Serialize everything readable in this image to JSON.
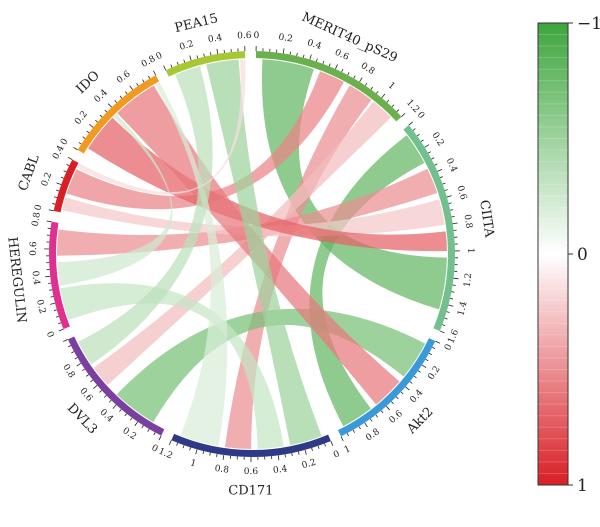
{
  "chart_data": {
    "type": "chord",
    "title": "",
    "sectors": [
      {
        "name": "MERIT40_pS29",
        "max": 1.2,
        "ticks": [
          0,
          0.2,
          0.4,
          0.6,
          0.8,
          1,
          1.2
        ],
        "color": "#6ab04c"
      },
      {
        "name": "CIITA",
        "max": 1.6,
        "ticks": [
          0,
          0.2,
          0.4,
          0.6,
          0.8,
          1,
          1.2,
          1.4,
          1.6
        ],
        "color": "#72c08e"
      },
      {
        "name": "Akt2",
        "max": 1.0,
        "ticks": [
          0,
          0.2,
          0.4,
          0.6,
          0.8,
          1
        ],
        "color": "#3a9ad8"
      },
      {
        "name": "CD171",
        "max": 1.2,
        "ticks": [
          0,
          0.2,
          0.4,
          0.6,
          0.8,
          1,
          1.2
        ],
        "color": "#2e3a87"
      },
      {
        "name": "DVL3",
        "max": 1.0,
        "ticks": [
          0,
          0.2,
          0.4,
          0.6,
          0.8
        ],
        "color": "#7b3fa0"
      },
      {
        "name": "HEREGULIN",
        "max": 0.8,
        "ticks": [
          0,
          0.2,
          0.4,
          0.6,
          0.8
        ],
        "color": "#e0308f"
      },
      {
        "name": "CABL",
        "max": 0.4,
        "ticks": [
          0,
          0.2,
          0.4
        ],
        "color": "#d81f26"
      },
      {
        "name": "IDO",
        "max": 0.8,
        "ticks": [
          0,
          0.2,
          0.4,
          0.6,
          0.8
        ],
        "color": "#f29a1f"
      },
      {
        "name": "PEA15",
        "max": 0.6,
        "ticks": [
          0,
          0.2,
          0.4,
          0.6
        ],
        "color": "#a8c833"
      }
    ],
    "links": [
      {
        "from": "MERIT40_pS29",
        "from_range": [
          0.05,
          0.45
        ],
        "to": "CIITA",
        "to_range": [
          1.05,
          1.45
        ],
        "value": -0.8
      },
      {
        "from": "MERIT40_pS29",
        "from_range": [
          0.5,
          0.7
        ],
        "to": "CABL",
        "to_range": [
          0.15,
          0.35
        ],
        "value": 0.55
      },
      {
        "from": "MERIT40_pS29",
        "from_range": [
          0.75,
          0.95
        ],
        "to": "CD171",
        "to_range": [
          0.6,
          0.8
        ],
        "value": 0.5
      },
      {
        "from": "MERIT40_pS29",
        "from_range": [
          0.97,
          1.15
        ],
        "to": "DVL3",
        "to_range": [
          0.55,
          0.72
        ],
        "value": 0.3
      },
      {
        "from": "CIITA",
        "from_range": [
          0.05,
          0.3
        ],
        "to": "Akt2",
        "to_range": [
          0.7,
          0.95
        ],
        "value": -0.8
      },
      {
        "from": "CIITA",
        "from_range": [
          0.35,
          0.55
        ],
        "to": "HEREGULIN",
        "to_range": [
          0.55,
          0.75
        ],
        "value": 0.5
      },
      {
        "from": "CIITA",
        "from_range": [
          0.6,
          0.8
        ],
        "to": "CABL",
        "to_range": [
          0.02,
          0.12
        ],
        "value": 0.25
      },
      {
        "from": "CIITA",
        "from_range": [
          0.85,
          1.0
        ],
        "to": "IDO",
        "to_range": [
          0.05,
          0.35
        ],
        "value": 0.7
      },
      {
        "from": "Akt2",
        "from_range": [
          0.05,
          0.35
        ],
        "to": "DVL3",
        "to_range": [
          0.1,
          0.45
        ],
        "value": -0.7
      },
      {
        "from": "Akt2",
        "from_range": [
          0.4,
          0.65
        ],
        "to": "IDO",
        "to_range": [
          0.4,
          0.75
        ],
        "value": 0.6
      },
      {
        "from": "CD171",
        "from_range": [
          0.05,
          0.3
        ],
        "to": "PEA15",
        "to_range": [
          0.3,
          0.55
        ],
        "value": -0.5
      },
      {
        "from": "CD171",
        "from_range": [
          0.35,
          0.55
        ],
        "to": "HEREGULIN",
        "to_range": [
          0.05,
          0.3
        ],
        "value": -0.3
      },
      {
        "from": "CD171",
        "from_range": [
          0.85,
          1.15
        ],
        "to": "IDO",
        "to_range": [
          0.76,
          0.8
        ],
        "value": -0.2
      },
      {
        "from": "DVL3",
        "from_range": [
          0.75,
          0.95
        ],
        "to": "PEA15",
        "to_range": [
          0.05,
          0.25
        ],
        "value": -0.35
      },
      {
        "from": "HEREGULIN",
        "from_range": [
          0.32,
          0.5
        ],
        "to": "IDO",
        "to_range": [
          0.36,
          0.39
        ],
        "value": -0.25
      },
      {
        "from": "CABL",
        "from_range": [
          0.36,
          0.4
        ],
        "to": "PEA15",
        "to_range": [
          0.56,
          0.6
        ],
        "value": 0.15
      }
    ],
    "colorbar": {
      "labels": [
        "−1",
        "0",
        "1"
      ],
      "low_color": "#d81f26",
      "mid_color": "#ffffff",
      "high_color": "#3da53d"
    }
  }
}
